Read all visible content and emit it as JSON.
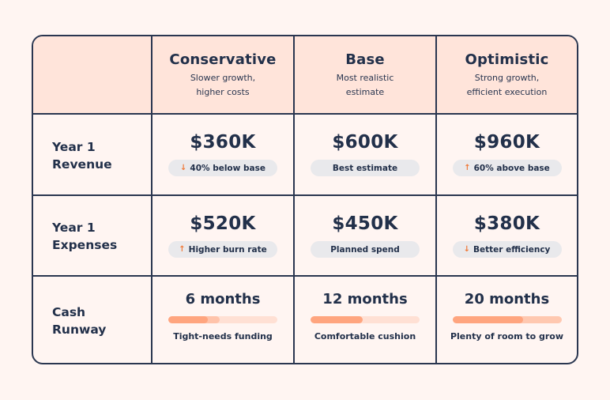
{
  "table": {
    "columns": [
      {
        "title": "Conservative",
        "subtitle": "Slower growth,\nhigher costs"
      },
      {
        "title": "Base",
        "subtitle": "Most realistic\nestimate"
      },
      {
        "title": "Optimistic",
        "subtitle": "Strong growth,\nefficient execution"
      }
    ],
    "rows": {
      "revenue": {
        "label": "Year 1\nRevenue",
        "cells": [
          {
            "value": "$360K",
            "badge": "40% below base",
            "icon": "arrow-down-icon",
            "glyph": "↓"
          },
          {
            "value": "$600K",
            "badge": "Best estimate",
            "icon": "",
            "glyph": ""
          },
          {
            "value": "$960K",
            "badge": "60% above base",
            "icon": "arrow-up-icon",
            "glyph": "↑"
          }
        ]
      },
      "expenses": {
        "label": "Year 1\nExpenses",
        "cells": [
          {
            "value": "$520K",
            "badge": "Higher burn rate",
            "icon": "arrow-up-icon",
            "glyph": "↑"
          },
          {
            "value": "$450K",
            "badge": "Planned spend",
            "icon": "",
            "glyph": ""
          },
          {
            "value": "$380K",
            "badge": "Better efficiency",
            "icon": "arrow-down-icon",
            "glyph": "↓"
          }
        ]
      },
      "runway": {
        "label": "Cash\nRunway",
        "cells": [
          {
            "months": "6 months",
            "note": "Tight-needs funding",
            "fill_pct": 36,
            "mid_pct": 47,
            "track_color": "#ffe0d4",
            "mid_color": "#ffc3aa",
            "fill_color": "#ffa57f"
          },
          {
            "months": "12 months",
            "note": "Comfortable  cushion",
            "fill_pct": 48,
            "mid_pct": 0,
            "track_color": "#ffe0d4",
            "mid_color": "#ffc3aa",
            "fill_color": "#ffa57f"
          },
          {
            "months": "20 months",
            "note": "Plenty of room to grow",
            "fill_pct": 65,
            "mid_pct": 0,
            "track_color": "#ffc8b0",
            "mid_color": "#ffc3aa",
            "fill_color": "#ffa57f"
          }
        ]
      }
    }
  },
  "colors": {
    "background": "#fff5f2",
    "header_fill": "#ffe4da",
    "border": "#2a3650",
    "text": "#22304a",
    "pill": "#e9e9ec",
    "arrow": "#f07a3a"
  }
}
